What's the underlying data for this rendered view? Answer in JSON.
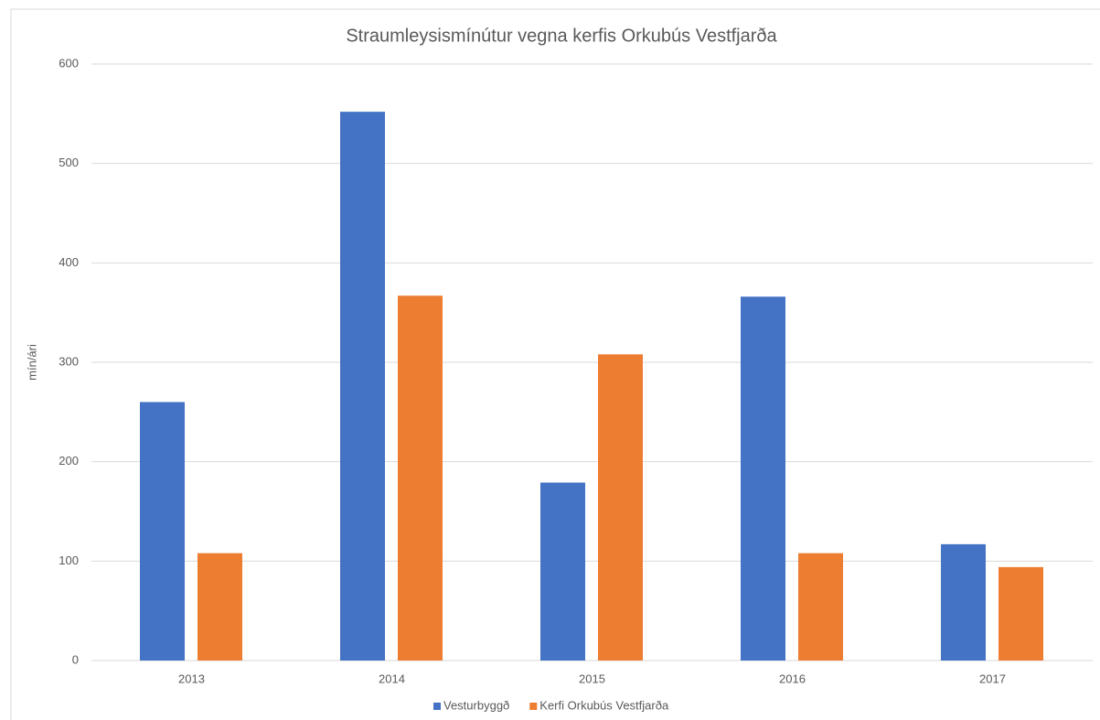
{
  "chart_data": {
    "type": "bar",
    "title": "Straumleysismínútur vegna kerfis Orkubús Vestfjarða",
    "y_label": "mín/ári",
    "categories": [
      "2013",
      "2014",
      "2015",
      "2016",
      "2017"
    ],
    "series": [
      {
        "name": "Vesturbyggð",
        "color": "#4472c4",
        "values": [
          260,
          552,
          179,
          366,
          117
        ]
      },
      {
        "name": "Kerfi Orkubús Vestfjarða",
        "color": "#ed7d31",
        "values": [
          108,
          367,
          308,
          108,
          94
        ]
      }
    ],
    "ylim": [
      0,
      600
    ],
    "yticks": [
      0,
      100,
      200,
      300,
      400,
      500,
      600
    ],
    "grid": true,
    "legend": "bottom"
  }
}
